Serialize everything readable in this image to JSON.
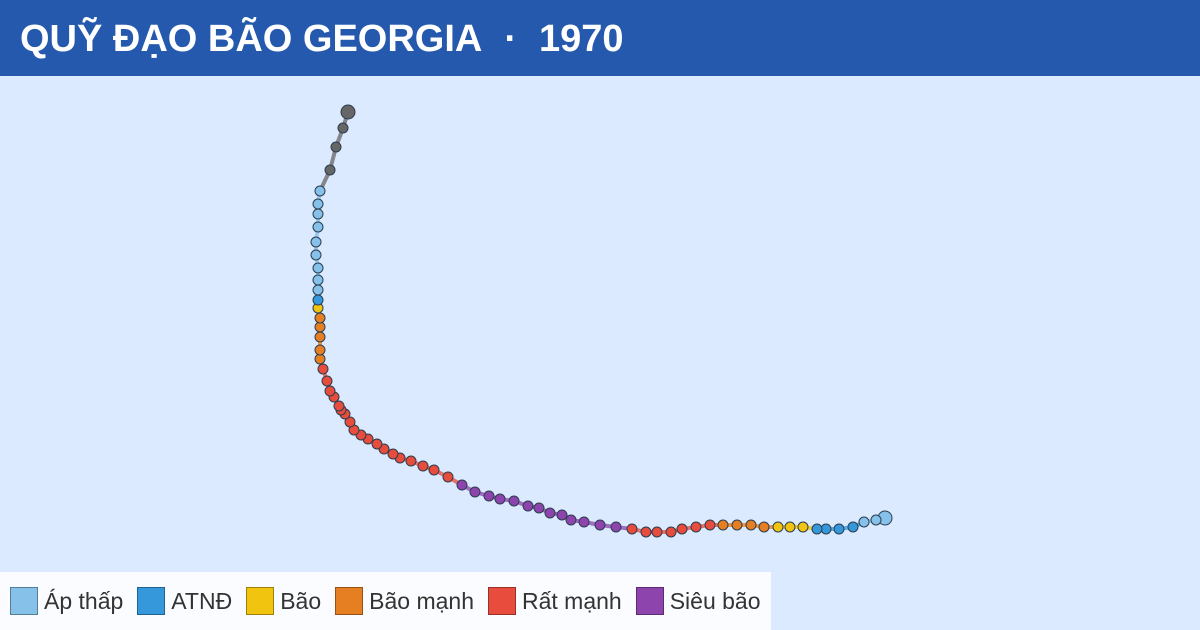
{
  "header": {
    "title": "QUỸ ĐẠO BÃO GEORGIA",
    "separator": "·",
    "year": "1970"
  },
  "legend": [
    "Áp thấp",
    "ATNĐ",
    "Bão",
    "Bão mạnh",
    "Rất mạnh",
    "Siêu bão"
  ],
  "colors": [
    "#85c1e9",
    "#3498db",
    "#f1c40f",
    "#e67e22",
    "#e74c3c",
    "#8e44ad",
    "#666666"
  ],
  "track": {
    "points": [
      [
        148.5,
        11.2,
        0
      ],
      [
        147.6,
        11.0,
        0
      ],
      [
        146.4,
        10.8,
        0
      ],
      [
        145.3,
        10.3,
        1
      ],
      [
        143.9,
        10.1,
        1
      ],
      [
        142.6,
        10.1,
        1
      ],
      [
        141.7,
        10.1,
        1
      ],
      [
        140.3,
        10.3,
        2
      ],
      [
        139.0,
        10.3,
        2
      ],
      [
        137.8,
        10.3,
        2
      ],
      [
        136.4,
        10.3,
        3
      ],
      [
        135.1,
        10.5,
        3
      ],
      [
        133.7,
        10.5,
        3
      ],
      [
        132.3,
        10.5,
        3
      ],
      [
        131.0,
        10.5,
        4
      ],
      [
        129.6,
        10.3,
        4
      ],
      [
        128.2,
        10.1,
        4
      ],
      [
        127.1,
        9.8,
        4
      ],
      [
        125.7,
        9.8,
        4
      ],
      [
        124.6,
        9.8,
        4
      ],
      [
        123.2,
        10.1,
        4
      ],
      [
        121.6,
        10.3,
        5
      ],
      [
        120.0,
        10.5,
        5
      ],
      [
        118.4,
        10.8,
        5
      ],
      [
        117.1,
        11.0,
        5
      ],
      [
        116.2,
        11.5,
        5
      ],
      [
        115.0,
        11.7,
        5
      ],
      [
        113.9,
        12.2,
        5
      ],
      [
        112.8,
        12.4,
        5
      ],
      [
        111.4,
        12.9,
        5
      ],
      [
        110.0,
        13.1,
        5
      ],
      [
        108.9,
        13.4,
        5
      ],
      [
        107.5,
        13.8,
        5
      ],
      [
        106.2,
        14.5,
        5
      ],
      [
        104.8,
        15.3,
        4
      ],
      [
        103.4,
        16.0,
        4
      ],
      [
        102.3,
        16.4,
        4
      ],
      [
        101.1,
        16.9,
        4
      ],
      [
        100.0,
        17.2,
        4
      ],
      [
        99.3,
        17.6,
        4
      ],
      [
        98.4,
        18.1,
        4
      ],
      [
        97.7,
        18.6,
        4
      ],
      [
        96.8,
        19.1,
        4
      ],
      [
        96.1,
        19.5,
        4
      ],
      [
        95.4,
        20.0,
        4
      ],
      [
        95.0,
        20.8,
        4
      ],
      [
        94.5,
        21.6,
        4
      ],
      [
        94.1,
        22.0,
        4
      ],
      [
        93.9,
        22.4,
        4
      ],
      [
        93.4,
        23.3,
        4
      ],
      [
        93.0,
        23.9,
        4
      ],
      [
        92.7,
        24.9,
        4
      ],
      [
        92.3,
        26.1,
        4
      ],
      [
        92.0,
        27.1,
        3
      ],
      [
        92.0,
        28.0,
        3
      ],
      [
        92.0,
        29.3,
        3
      ],
      [
        92.0,
        30.3,
        3
      ],
      [
        92.0,
        31.2,
        3
      ],
      [
        91.8,
        32.2,
        2
      ],
      [
        91.8,
        33.0,
        1
      ],
      [
        91.8,
        34.0,
        0
      ],
      [
        91.8,
        35.0,
        0
      ],
      [
        91.8,
        36.2,
        0
      ],
      [
        91.6,
        37.5,
        0
      ],
      [
        91.6,
        38.8,
        0
      ],
      [
        91.8,
        40.3,
        0
      ],
      [
        91.8,
        41.6,
        0
      ],
      [
        91.8,
        42.6,
        0
      ],
      [
        92.0,
        43.9,
        0
      ],
      [
        93.0,
        46.0,
        6
      ],
      [
        93.6,
        48.3,
        6
      ],
      [
        94.3,
        50.2,
        6
      ],
      [
        94.8,
        51.8,
        6
      ]
    ]
  }
}
